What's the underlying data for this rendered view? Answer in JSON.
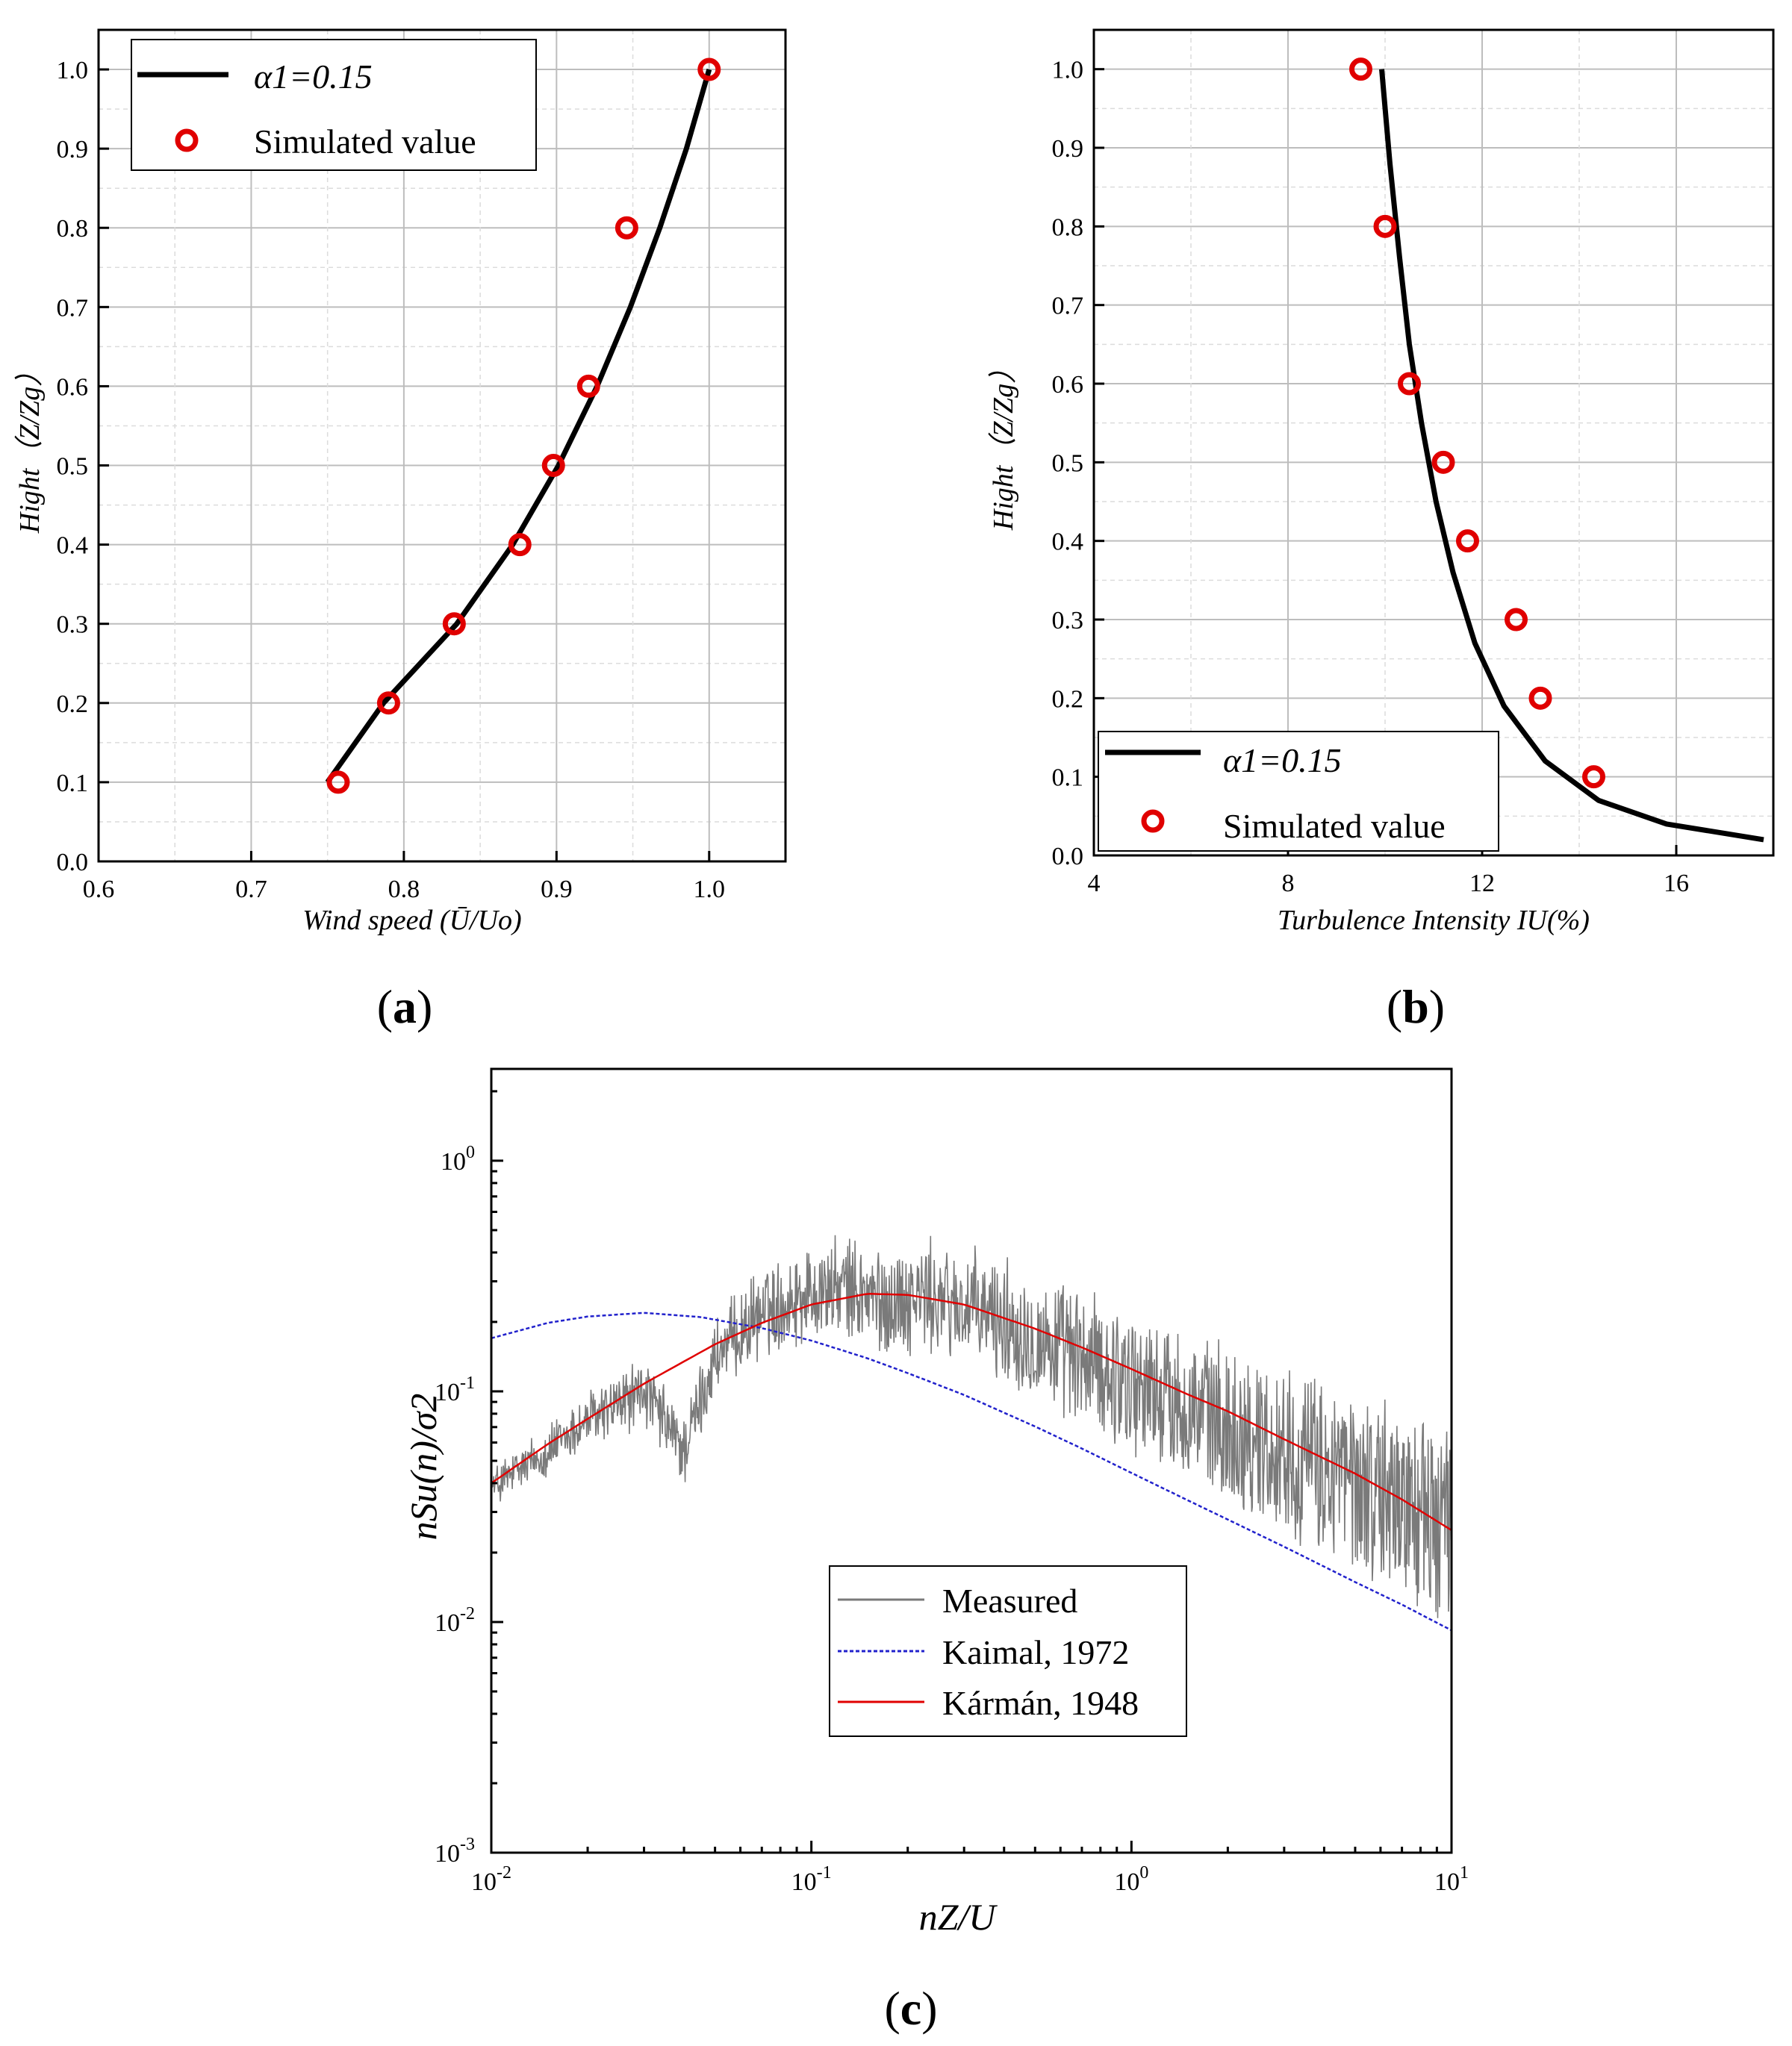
{
  "chart_data": [
    {
      "panel_label": "a",
      "type": "line",
      "xlabel": "Wind speed (Ū/Uo)",
      "ylabel": "Hight（Z/Zg）",
      "xlim": [
        0.6,
        1.05
      ],
      "ylim": [
        0.0,
        1.05
      ],
      "xticks": [
        "0.6",
        "0.7",
        "0.8",
        "0.9",
        "1.0"
      ],
      "yticks": [
        "0.0",
        "0.1",
        "0.2",
        "0.3",
        "0.4",
        "0.5",
        "0.6",
        "0.7",
        "0.8",
        "0.9",
        "1.0"
      ],
      "grid": true,
      "legend_position": "top-left",
      "series": [
        {
          "name": "α1=0.15",
          "kind": "line",
          "color": "#000000",
          "x": [
            0.7499,
            0.7867,
            0.8347,
            0.8713,
            0.9013,
            0.9266,
            0.9484,
            0.9677,
            0.9851,
            1.0
          ],
          "y": [
            0.1,
            0.2,
            0.3,
            0.4,
            0.5,
            0.6,
            0.7,
            0.8,
            0.9,
            1.0
          ]
        },
        {
          "name": "Simulated value",
          "kind": "scatter",
          "color": "#e00000",
          "x": [
            0.757,
            0.79,
            0.833,
            0.876,
            0.898,
            0.921,
            0.946,
            1.0
          ],
          "y": [
            0.1,
            0.2,
            0.3,
            0.4,
            0.5,
            0.6,
            0.8,
            1.0
          ]
        }
      ]
    },
    {
      "panel_label": "b",
      "type": "line",
      "xlabel": "Turbulence Intensity IU(%)",
      "ylabel": "Hight（Z/Zg）",
      "xlim": [
        4,
        18
      ],
      "ylim": [
        0.0,
        1.05
      ],
      "xticks": [
        "4",
        "8",
        "12",
        "16"
      ],
      "yticks": [
        "0.0",
        "0.1",
        "0.2",
        "0.3",
        "0.4",
        "0.5",
        "0.6",
        "0.7",
        "0.8",
        "0.9",
        "1.0"
      ],
      "grid": true,
      "legend_position": "bottom-left",
      "series": [
        {
          "name": "α1=0.15",
          "kind": "line",
          "color": "#000000",
          "x": [
            9.93,
            10.1,
            10.3,
            10.5,
            10.75,
            11.05,
            11.4,
            11.85,
            12.45,
            13.3,
            14.4,
            15.8,
            17.8
          ],
          "y": [
            1.0,
            0.88,
            0.76,
            0.65,
            0.55,
            0.45,
            0.36,
            0.27,
            0.19,
            0.12,
            0.07,
            0.04,
            0.02
          ]
        },
        {
          "name": "Simulated value",
          "kind": "scatter",
          "color": "#e00000",
          "x": [
            9.5,
            10.0,
            10.5,
            11.2,
            11.7,
            12.7,
            13.2,
            14.3
          ],
          "y": [
            1.0,
            0.8,
            0.6,
            0.5,
            0.4,
            0.3,
            0.2,
            0.1
          ]
        }
      ]
    },
    {
      "panel_label": "c",
      "type": "line",
      "xlabel": "nZ/U",
      "ylabel": "nSu(n)/σ2",
      "xscale": "log",
      "yscale": "log",
      "xlim": [
        0.01,
        10
      ],
      "ylim": [
        0.001,
        2.5
      ],
      "xticks": [
        {
          "base": "10",
          "exp": "-2"
        },
        {
          "base": "10",
          "exp": "-1"
        },
        {
          "base": "10",
          "exp": "0"
        },
        {
          "base": "10",
          "exp": "1"
        }
      ],
      "yticks": [
        {
          "base": "10",
          "exp": "-3"
        },
        {
          "base": "10",
          "exp": "-2"
        },
        {
          "base": "10",
          "exp": "-1"
        },
        {
          "base": "10",
          "exp": "0"
        }
      ],
      "grid": false,
      "legend_position": "lower-center",
      "series": [
        {
          "name": "Measured",
          "kind": "noisy-line",
          "color": "#7a7a7a",
          "x": [
            0.01,
            0.015,
            0.02,
            0.03,
            0.04,
            0.05,
            0.07,
            0.1,
            0.13,
            0.17,
            0.22,
            0.3,
            0.4,
            0.6,
            1.0,
            1.5,
            2.0,
            3.0,
            5.0,
            7.0,
            10.0
          ],
          "y": [
            0.038,
            0.055,
            0.075,
            0.1,
            0.055,
            0.14,
            0.22,
            0.27,
            0.28,
            0.24,
            0.26,
            0.23,
            0.2,
            0.15,
            0.11,
            0.085,
            0.07,
            0.055,
            0.04,
            0.033,
            0.025
          ]
        },
        {
          "name": "Kaimal, 1972",
          "kind": "dashed-line",
          "color": "#2222cc",
          "x": [
            0.01,
            0.015,
            0.02,
            0.03,
            0.045,
            0.07,
            0.1,
            0.15,
            0.2,
            0.3,
            0.5,
            0.7,
            1.0,
            1.5,
            2.0,
            3.0,
            5.0,
            7.0,
            10.0
          ],
          "y": [
            0.17,
            0.198,
            0.211,
            0.219,
            0.21,
            0.188,
            0.166,
            0.139,
            0.12,
            0.0965,
            0.0704,
            0.0565,
            0.0443,
            0.0337,
            0.0278,
            0.0212,
            0.0149,
            0.0119,
            0.0092
          ]
        },
        {
          "name": "Kármán, 1948",
          "kind": "line",
          "color": "#e00000",
          "x": [
            0.01,
            0.015,
            0.02,
            0.03,
            0.05,
            0.07,
            0.1,
            0.15,
            0.2,
            0.3,
            0.5,
            0.7,
            1.0,
            1.5,
            2.0,
            3.0,
            5.0,
            7.0,
            10.0
          ],
          "y": [
            0.04,
            0.059,
            0.076,
            0.108,
            0.16,
            0.198,
            0.238,
            0.265,
            0.262,
            0.238,
            0.187,
            0.155,
            0.125,
            0.097,
            0.082,
            0.062,
            0.044,
            0.034,
            0.025
          ]
        }
      ]
    }
  ]
}
